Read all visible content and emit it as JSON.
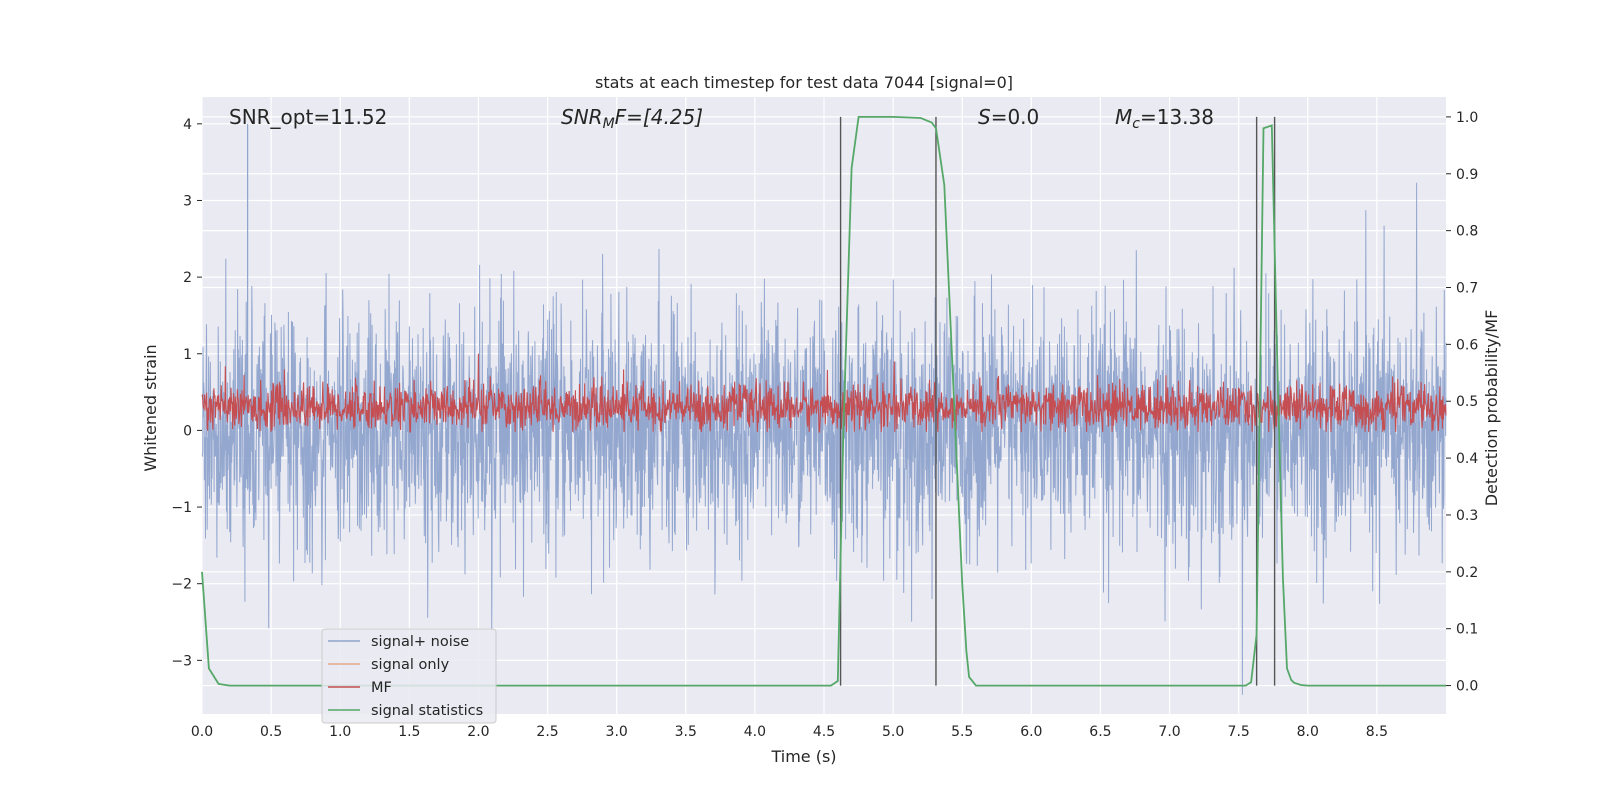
{
  "chart_data": {
    "type": "line",
    "title": "stats at each timestep for test data 7044 [signal=0]",
    "xlabel": "Time (s)",
    "ylabel_left": "Whitened strain",
    "ylabel_right": "Detection probability/MF",
    "xlim": [
      0.0,
      9.0
    ],
    "ylim_left": [
      -3.7,
      4.35
    ],
    "ylim_right": [
      -0.05,
      1.035
    ],
    "xticks": [
      "0.0",
      "0.5",
      "1.0",
      "1.5",
      "2.0",
      "2.5",
      "3.0",
      "3.5",
      "4.0",
      "4.5",
      "5.0",
      "5.5",
      "6.0",
      "6.5",
      "7.0",
      "7.5",
      "8.0",
      "8.5"
    ],
    "yticks_left": [
      "−3",
      "−2",
      "−1",
      "0",
      "1",
      "2",
      "3",
      "4"
    ],
    "yticks_right": [
      "0.0",
      "0.1",
      "0.2",
      "0.3",
      "0.4",
      "0.5",
      "0.6",
      "0.7",
      "0.8",
      "0.9",
      "1.0"
    ],
    "grid": true,
    "legend_position": "lower-left",
    "annotations": {
      "snr_opt": "SNR_opt=11.52",
      "snr_mf_main": "SNR",
      "snr_mf_sub": "M",
      "snr_mf_rest": "F=[4.25]",
      "s_main": "S",
      "s_rest": "=0.0",
      "mc_main": "M",
      "mc_sub": "c",
      "mc_rest": "=13.38"
    },
    "vlines": [
      4.62,
      5.31,
      7.63,
      7.76
    ],
    "series": [
      {
        "name": "signal+ noise",
        "color": "#8ea3cc",
        "kind": "noise",
        "mean": 0.0,
        "std": 0.75,
        "peak": 4.0
      },
      {
        "name": "signal only",
        "color": "#e8a88a",
        "kind": "flat",
        "value": 0.0
      },
      {
        "name": "MF",
        "color": "#c44e52",
        "kind": "mf",
        "base": 0.3,
        "peak": 1.0
      },
      {
        "name": "signal statistics",
        "color": "#55a868",
        "kind": "prob",
        "axis": "right",
        "x": [
          0.0,
          0.05,
          0.12,
          0.2,
          0.5,
          1.0,
          2.0,
          3.0,
          4.0,
          4.5,
          4.55,
          4.6,
          4.64,
          4.7,
          4.75,
          5.0,
          5.2,
          5.28,
          5.31,
          5.37,
          5.45,
          5.5,
          5.53,
          5.55,
          5.6,
          6.0,
          7.0,
          7.5,
          7.55,
          7.59,
          7.63,
          7.68,
          7.74,
          7.78,
          7.82,
          7.85,
          7.88,
          7.9,
          7.95,
          8.0,
          8.5,
          9.0
        ],
        "y": [
          0.2,
          0.03,
          0.003,
          0.0,
          0.0,
          0.0,
          0.0,
          0.0,
          0.0,
          0.0,
          0.0,
          0.008,
          0.45,
          0.91,
          1.0,
          1.0,
          0.998,
          0.99,
          0.98,
          0.88,
          0.45,
          0.18,
          0.06,
          0.015,
          0.0,
          0.0,
          0.0,
          0.0,
          0.0,
          0.006,
          0.09,
          0.98,
          0.985,
          0.56,
          0.19,
          0.03,
          0.01,
          0.005,
          0.001,
          0.0,
          0.0,
          0.0
        ]
      }
    ]
  }
}
